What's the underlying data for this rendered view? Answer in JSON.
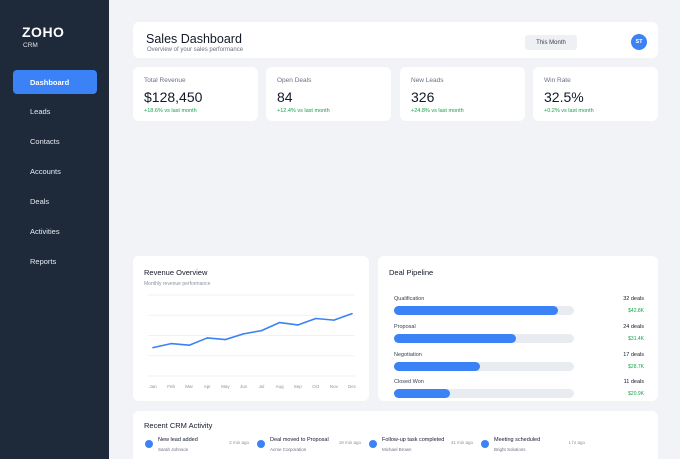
{
  "sidebar": {
    "brand": "ZOHO",
    "brand_sub": "CRM",
    "items": [
      {
        "label": "Dashboard",
        "active": true
      },
      {
        "label": "Leads"
      },
      {
        "label": "Contacts"
      },
      {
        "label": "Accounts"
      },
      {
        "label": "Deals"
      },
      {
        "label": "Activities"
      },
      {
        "label": "Reports"
      }
    ]
  },
  "header": {
    "title": "Sales Dashboard",
    "subtitle": "Overview of your sales performance",
    "period": "This Month",
    "avatar_initials": "ST"
  },
  "stats": [
    {
      "label": "Total Revenue",
      "value": "$128,450",
      "change": "+18.6% vs last month"
    },
    {
      "label": "Open Deals",
      "value": "84",
      "change": "+12.4% vs last month"
    },
    {
      "label": "New Leads",
      "value": "326",
      "change": "+24.8% vs last month"
    },
    {
      "label": "Win Rate",
      "value": "32.5%",
      "change": "+0.2% vs last month"
    }
  ],
  "revenue": {
    "title": "Revenue Overview",
    "subtitle": "Monthly revenue performance",
    "chart_data": {
      "type": "line",
      "x": [
        "Jan",
        "Feb",
        "Mar",
        "Apr",
        "May",
        "Jun",
        "Jul",
        "Aug",
        "Sep",
        "Oct",
        "Nov",
        "Dec"
      ],
      "values": [
        35,
        40,
        38,
        47,
        45,
        52,
        56,
        66,
        63,
        71,
        69,
        77
      ],
      "ylim": [
        0,
        100
      ],
      "grid": true,
      "color": "#3b82f6"
    }
  },
  "pipeline": {
    "title": "Deal Pipeline",
    "stages": [
      {
        "name": "Qualification",
        "count": "32 deals",
        "amount": "$42.8K",
        "fill": 0.91
      },
      {
        "name": "Proposal",
        "count": "24 deals",
        "amount": "$31.4K",
        "fill": 0.68
      },
      {
        "name": "Negotiation",
        "count": "17 deals",
        "amount": "$28.7K",
        "fill": 0.48
      },
      {
        "name": "Closed Won",
        "count": "11 deals",
        "amount": "$20.9K",
        "fill": 0.31
      }
    ]
  },
  "activity": {
    "title": "Recent CRM Activity",
    "items": [
      {
        "label": "New lead added",
        "person": "Sarah Johnson",
        "time": "2 min ago"
      },
      {
        "label": "Deal moved to Proposal",
        "person": "Acme Corporation",
        "time": "18 min ago"
      },
      {
        "label": "Follow-up task completed",
        "person": "Michael Brown",
        "time": "41 min ago"
      },
      {
        "label": "Meeting scheduled",
        "person": "Bright Solutions",
        "time": "1 hr ago"
      }
    ]
  }
}
